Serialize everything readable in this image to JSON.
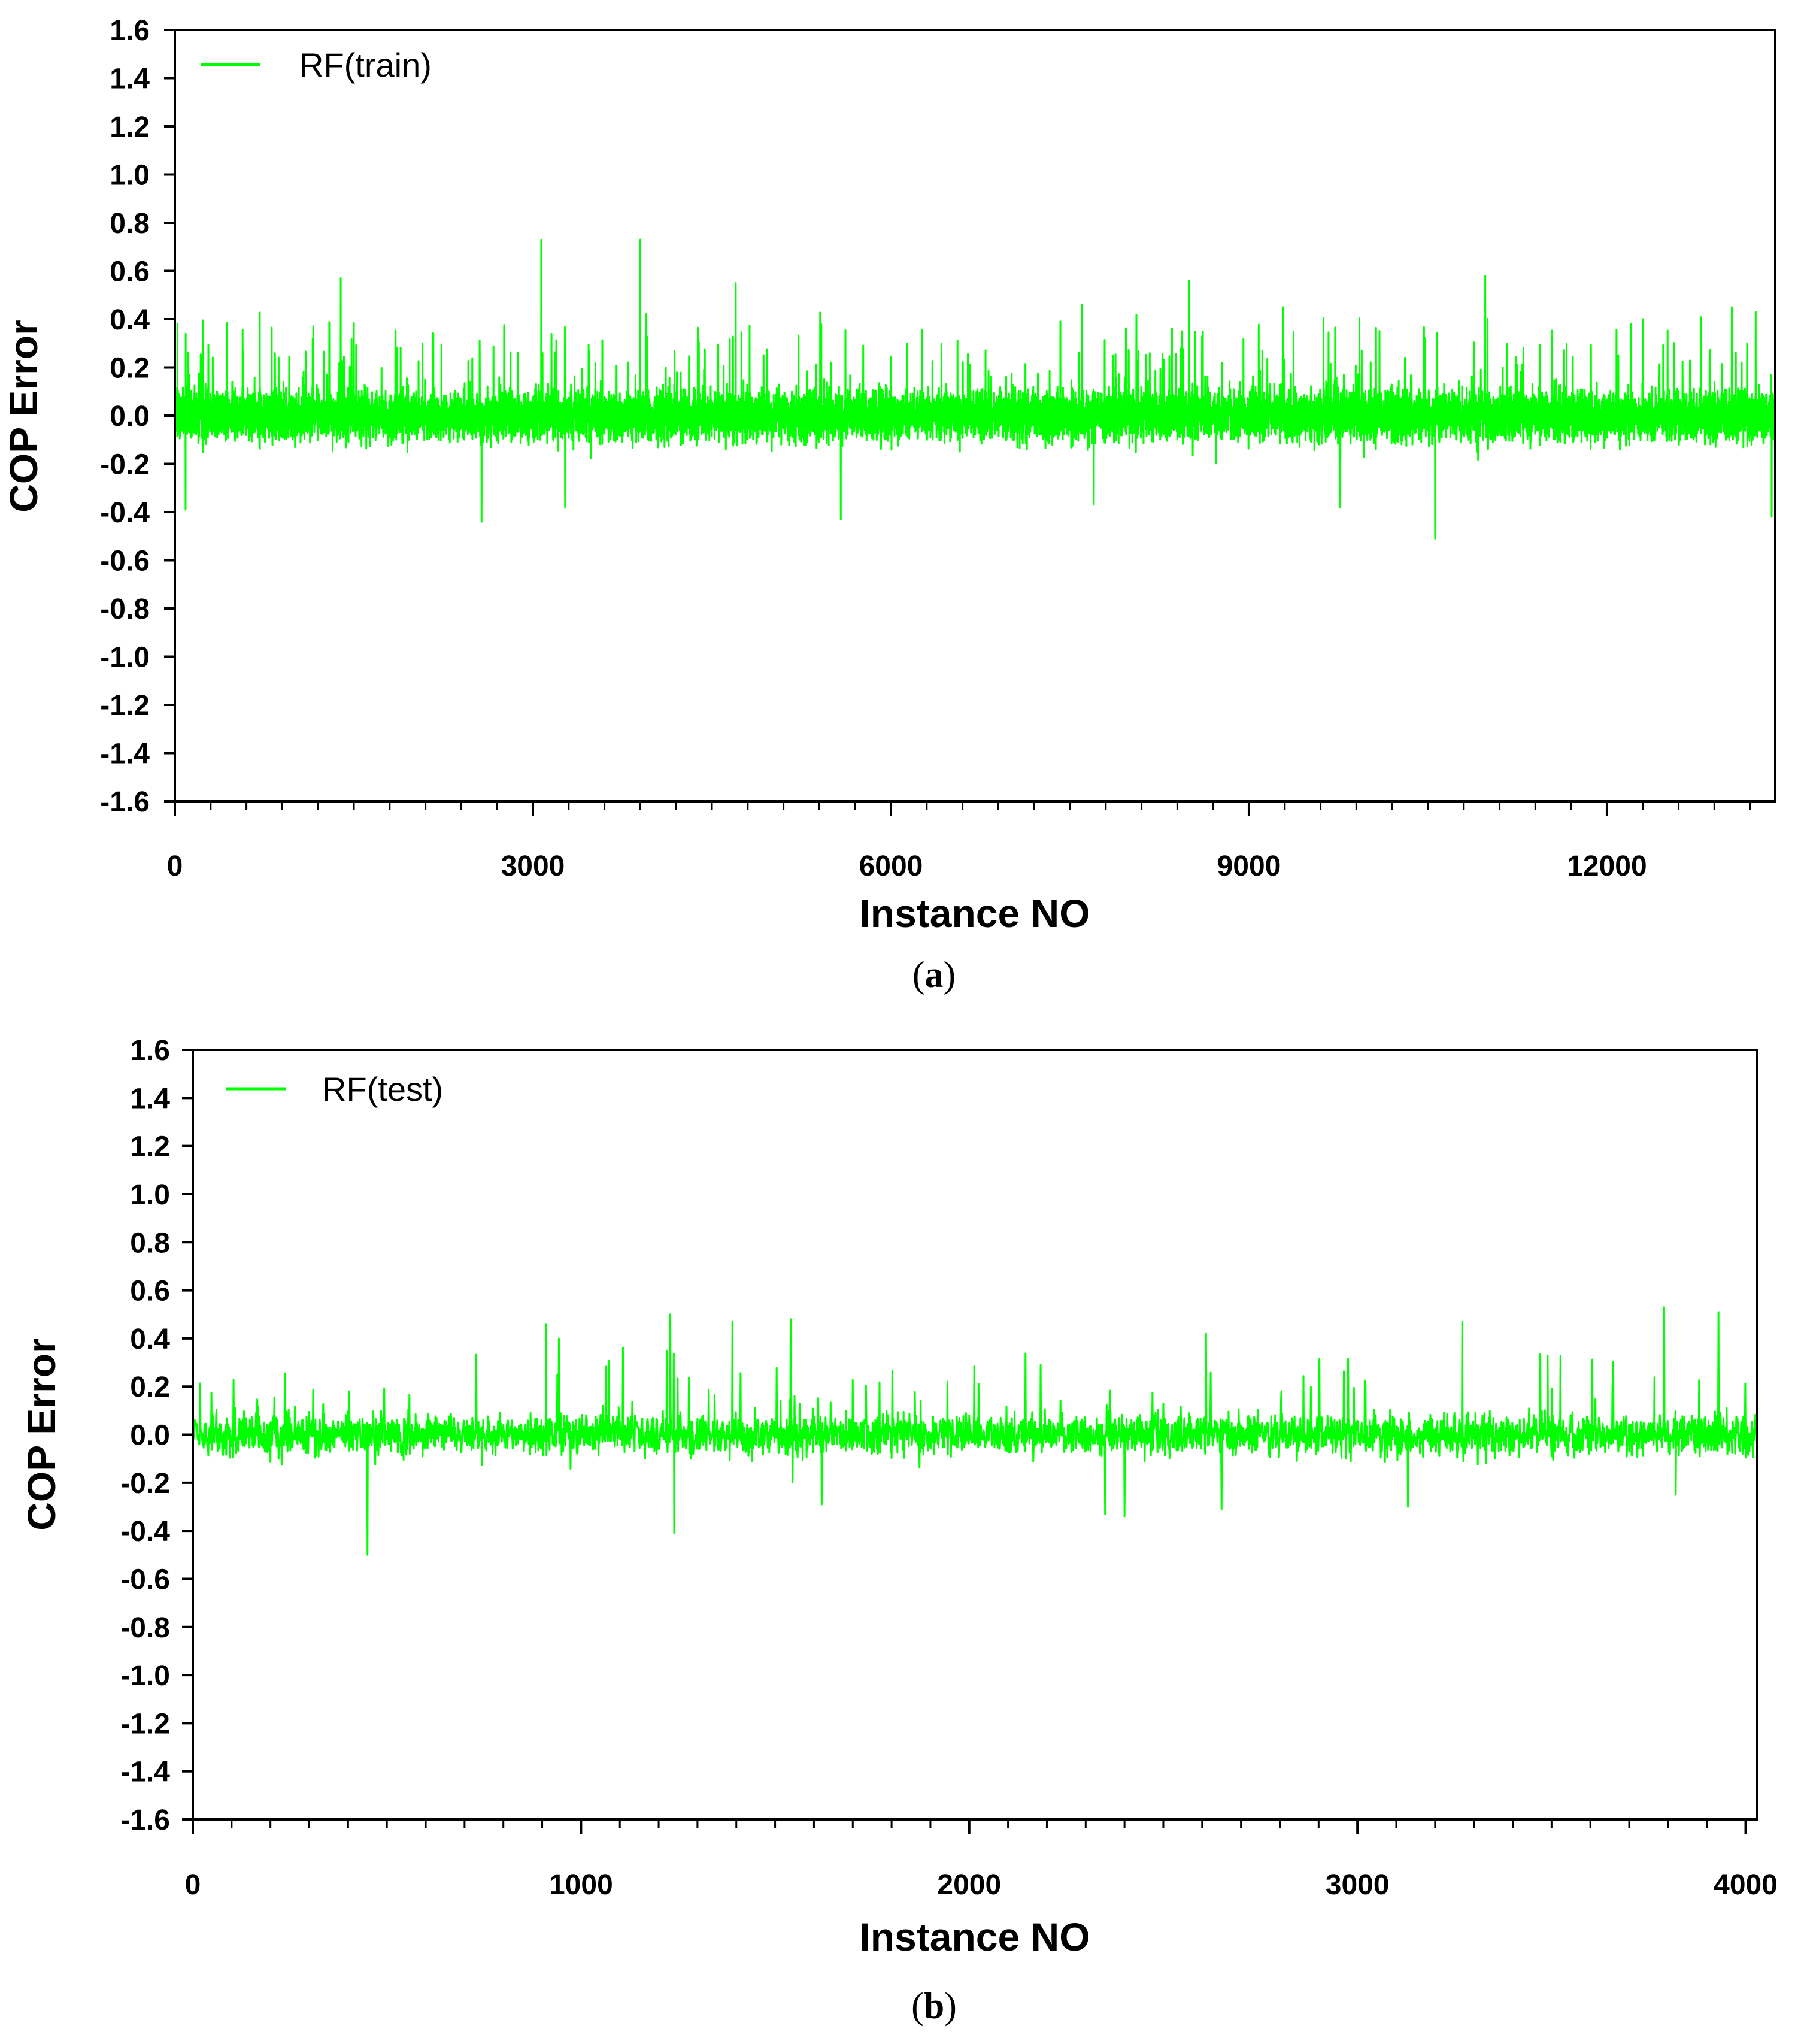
{
  "chart_data": [
    {
      "type": "line",
      "panel_label": "(a)",
      "caption_letter": "a",
      "xlabel": "Instance NO",
      "ylabel": "COP Error",
      "xlim": [
        0,
        13410
      ],
      "ylim": [
        -1.6,
        1.6
      ],
      "x_ticks": [
        0,
        3000,
        6000,
        9000,
        12000
      ],
      "x_tick_labels": [
        "0",
        "3000",
        "6000",
        "9000",
        "12000"
      ],
      "x_minor_step": 300,
      "y_ticks": [
        1.6,
        1.4,
        1.2,
        1.0,
        0.8,
        0.6,
        0.4,
        0.2,
        0.0,
        -0.2,
        -0.4,
        -0.6,
        -0.8,
        -1.0,
        -1.2,
        -1.4,
        -1.6
      ],
      "y_tick_labels": [
        "1.6",
        "1.4",
        "1.2",
        "1.0",
        "0.8",
        "0.6",
        "0.4",
        "0.2",
        "0.0",
        "-0.2",
        "-0.4",
        "-0.6",
        "-0.8",
        "-1.0",
        "-1.2",
        "-1.4",
        "-1.6"
      ],
      "grid": false,
      "legend_position": "top-left",
      "color": "#00FF00",
      "series": [
        {
          "name": "RF(train)",
          "n_points": 13410,
          "noise_level": 0.085,
          "typical_max": 0.45,
          "typical_min": -0.35,
          "peaks": [
            {
              "x": 3070,
              "y": 0.73
            },
            {
              "x": 3900,
              "y": 0.73
            },
            {
              "x": 1390,
              "y": 0.57
            },
            {
              "x": 4700,
              "y": 0.55
            },
            {
              "x": 8500,
              "y": 0.56
            },
            {
              "x": 10980,
              "y": 0.58
            },
            {
              "x": 12300,
              "y": 0.4
            },
            {
              "x": 7600,
              "y": 0.46
            },
            {
              "x": 2570,
              "y": -0.44
            },
            {
              "x": 5580,
              "y": -0.43
            },
            {
              "x": 10560,
              "y": -0.51
            },
            {
              "x": 3270,
              "y": -0.38
            },
            {
              "x": 13380,
              "y": -0.42
            },
            {
              "x": 90,
              "y": -0.39
            },
            {
              "x": 7700,
              "y": -0.37
            },
            {
              "x": 9760,
              "y": -0.38
            }
          ]
        }
      ]
    },
    {
      "type": "line",
      "panel_label": "(b)",
      "caption_letter": "b",
      "xlabel": "Instance NO",
      "ylabel": "COP Error",
      "xlim": [
        0,
        4030
      ],
      "ylim": [
        -1.6,
        1.6
      ],
      "x_ticks": [
        0,
        1000,
        2000,
        3000,
        4000
      ],
      "x_tick_labels": [
        "0",
        "1000",
        "2000",
        "3000",
        "4000"
      ],
      "x_minor_step": 100,
      "y_ticks": [
        1.6,
        1.4,
        1.2,
        1.0,
        0.8,
        0.6,
        0.4,
        0.2,
        0.0,
        -0.2,
        -0.4,
        -0.6,
        -0.8,
        -1.0,
        -1.2,
        -1.4,
        -1.6
      ],
      "y_tick_labels": [
        "1.6",
        "1.4",
        "1.2",
        "1.0",
        "0.8",
        "0.6",
        "0.4",
        "0.2",
        "0.0",
        "-0.2",
        "-0.4",
        "-0.6",
        "-0.8",
        "-1.0",
        "-1.2",
        "-1.4",
        "-1.6"
      ],
      "grid": false,
      "legend_position": "top-left",
      "color": "#00FF00",
      "series": [
        {
          "name": "RF(test)",
          "n_points": 4030,
          "noise_level": 0.07,
          "typical_max": 0.4,
          "typical_min": -0.3,
          "peaks": [
            {
              "x": 910,
              "y": 0.46
            },
            {
              "x": 1230,
              "y": 0.5
            },
            {
              "x": 1390,
              "y": 0.47
            },
            {
              "x": 1540,
              "y": 0.48
            },
            {
              "x": 3790,
              "y": 0.53
            },
            {
              "x": 3930,
              "y": 0.51
            },
            {
              "x": 3270,
              "y": 0.47
            },
            {
              "x": 2610,
              "y": 0.42
            },
            {
              "x": 450,
              "y": -0.5
            },
            {
              "x": 1240,
              "y": -0.41
            },
            {
              "x": 2400,
              "y": -0.34
            },
            {
              "x": 2350,
              "y": -0.33
            },
            {
              "x": 3130,
              "y": -0.3
            },
            {
              "x": 1620,
              "y": -0.29
            },
            {
              "x": 3820,
              "y": -0.25
            },
            {
              "x": 2650,
              "y": -0.31
            }
          ]
        }
      ]
    }
  ]
}
